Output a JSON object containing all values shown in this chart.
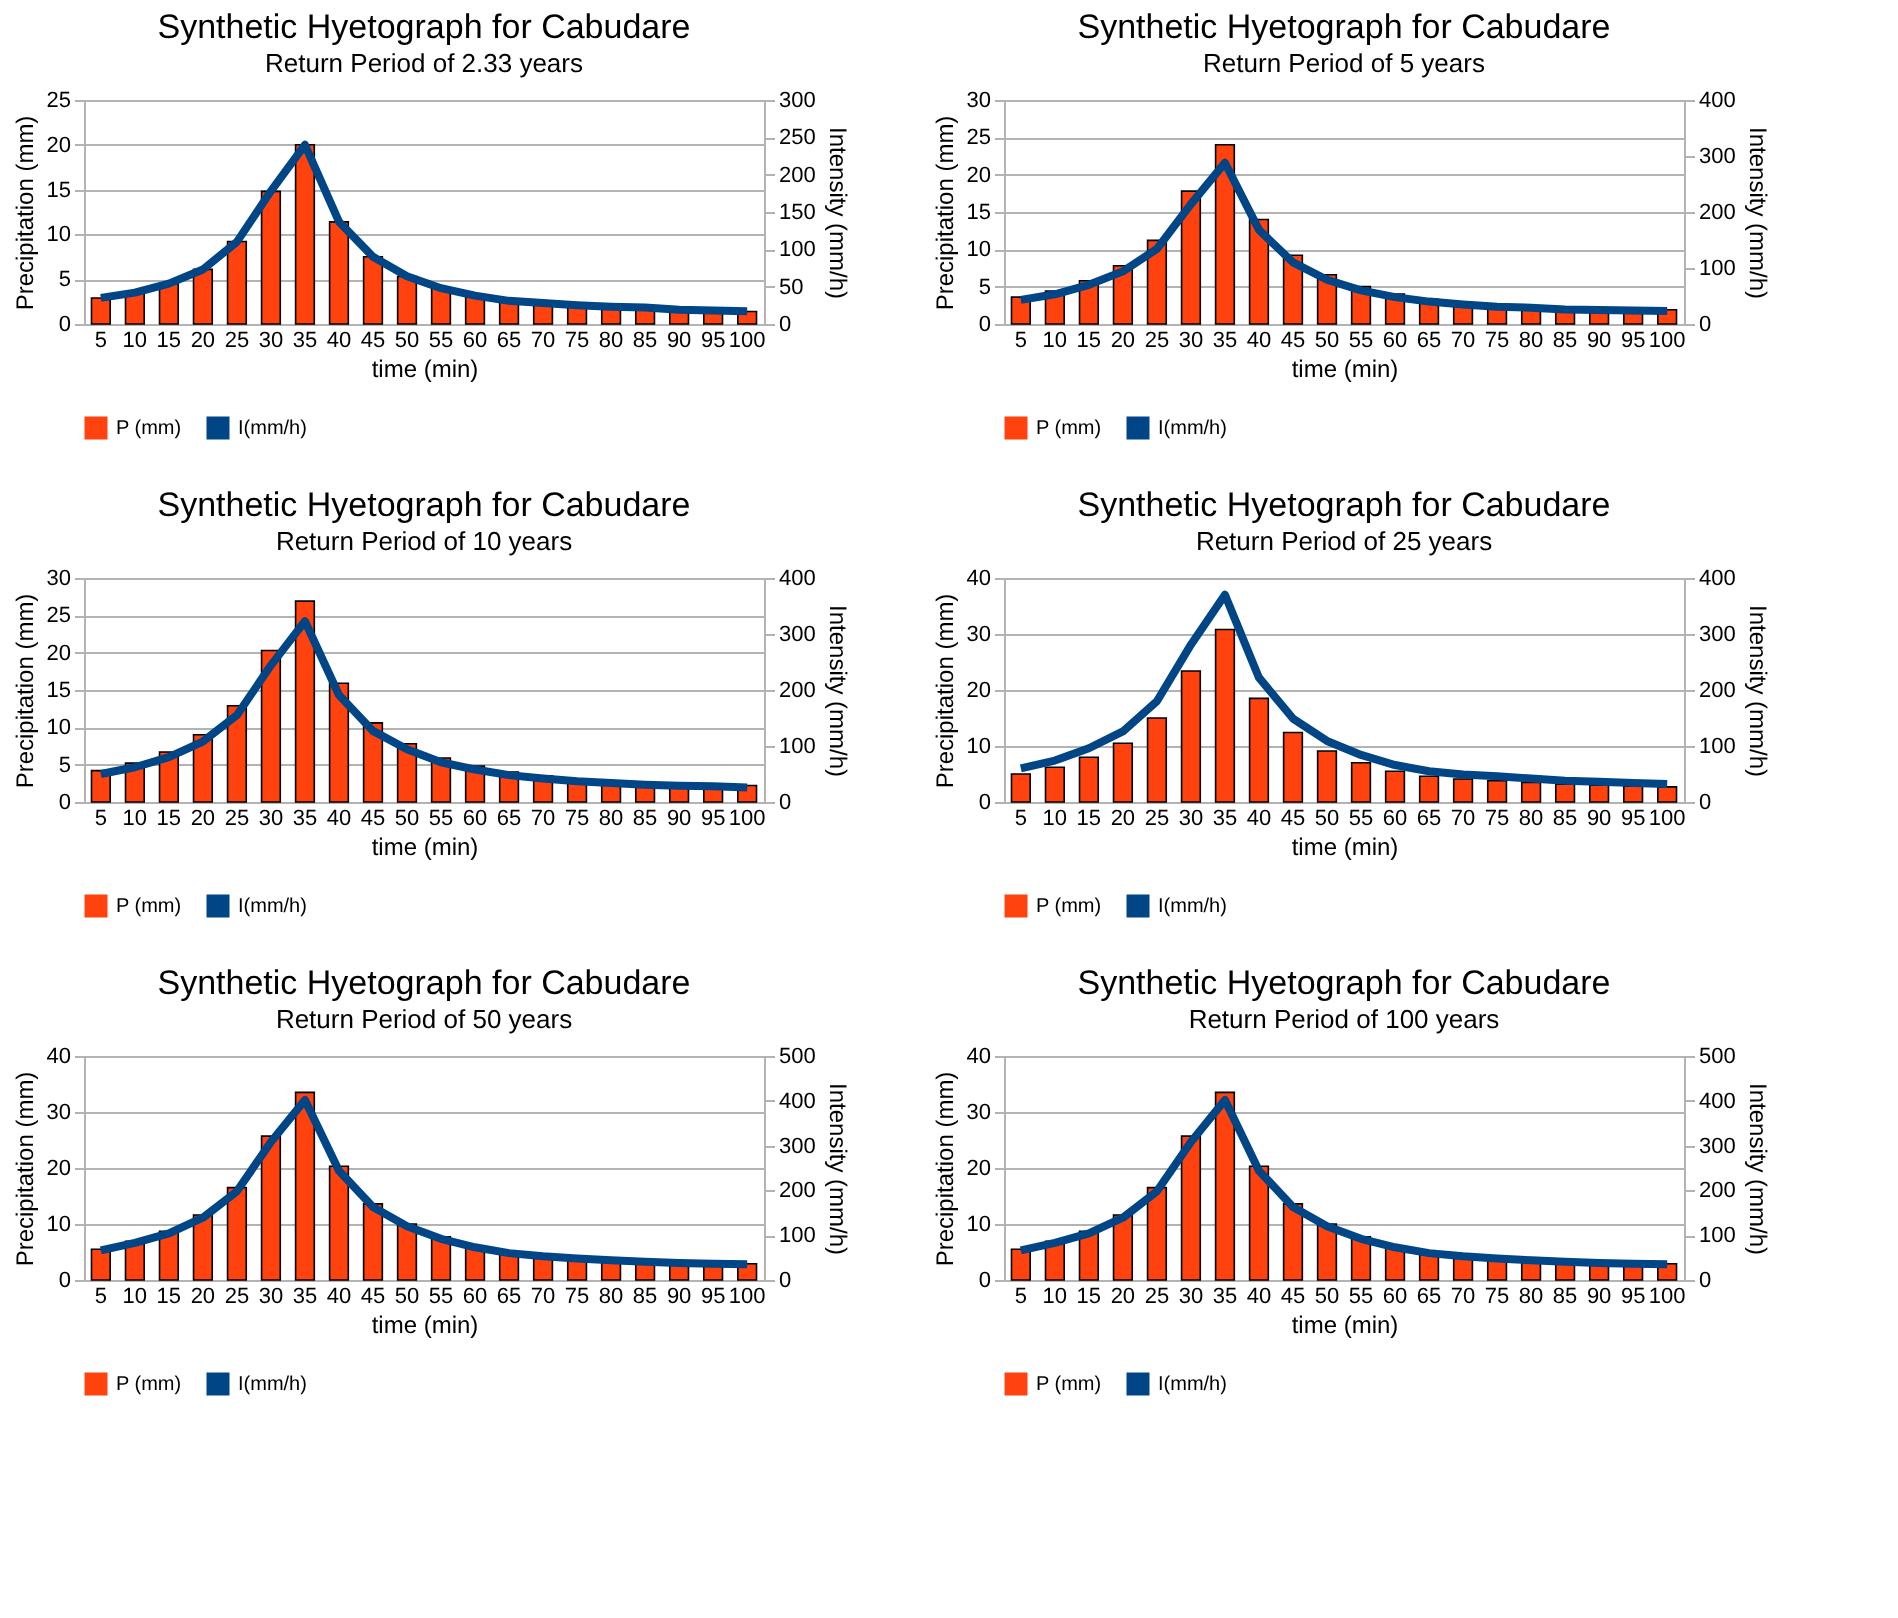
{
  "chart_data": [
    {
      "type": "bar",
      "title": "Synthetic Hyetograph for Cabudare",
      "subtitle": "Return Period of 2.33 years",
      "xlabel": "time (min)",
      "ylabel": "Precipitation (mm)",
      "y2label": "Intensity (mm/h)",
      "categories": [
        "5",
        "10",
        "15",
        "20",
        "25",
        "30",
        "35",
        "40",
        "45",
        "50",
        "55",
        "60",
        "65",
        "70",
        "75",
        "80",
        "85",
        "90",
        "95",
        "100"
      ],
      "series": [
        {
          "name": "P (mm)",
          "color": "#ff420e",
          "values": [
            2.9,
            3.5,
            4.5,
            6.1,
            9.2,
            14.8,
            20,
            11.4,
            7.5,
            5.3,
            4.0,
            3.2,
            2.6,
            2.3,
            2.1,
            1.9,
            1.8,
            1.6,
            1.5,
            1.4
          ]
        },
        {
          "name": "I(mm/h)",
          "type": "line",
          "axis": "y2",
          "color": "#004586",
          "values": [
            35,
            42,
            54,
            73,
            110,
            178,
            240,
            137,
            90,
            64,
            48,
            38,
            31,
            28,
            25,
            23,
            22,
            19,
            18,
            17
          ]
        }
      ],
      "ylim": [
        0,
        25
      ],
      "yticks": [
        0,
        5,
        10,
        15,
        20,
        25
      ],
      "y2lim": [
        0,
        300
      ],
      "y2ticks": [
        0,
        50,
        100,
        150,
        200,
        250,
        300
      ],
      "grid": "y",
      "legend": "bottom"
    },
    {
      "type": "bar",
      "title": "Synthetic Hyetograph for Cabudare",
      "subtitle": "Return Period of 5 years",
      "xlabel": "time (min)",
      "ylabel": "Precipitation (mm)",
      "y2label": "Intensity (mm/h)",
      "categories": [
        "5",
        "10",
        "15",
        "20",
        "25",
        "30",
        "35",
        "40",
        "45",
        "50",
        "55",
        "60",
        "65",
        "70",
        "75",
        "80",
        "85",
        "90",
        "95",
        "100"
      ],
      "series": [
        {
          "name": "P (mm)",
          "color": "#ff420e",
          "values": [
            3.6,
            4.4,
            5.8,
            7.8,
            11.2,
            17.8,
            24,
            14,
            9.2,
            6.6,
            5.0,
            4.0,
            3.3,
            2.9,
            2.6,
            2.4,
            2.2,
            2.1,
            2.0,
            1.9
          ]
        },
        {
          "name": "I(mm/h)",
          "type": "line",
          "axis": "y2",
          "color": "#004586",
          "values": [
            43,
            53,
            70,
            94,
            134,
            214,
            288,
            168,
            110,
            79,
            60,
            48,
            40,
            35,
            31,
            29,
            26,
            25,
            24,
            23
          ]
        }
      ],
      "ylim": [
        0,
        30
      ],
      "yticks": [
        0,
        5,
        10,
        15,
        20,
        25,
        30
      ],
      "y2lim": [
        0,
        400
      ],
      "y2ticks": [
        0,
        100,
        200,
        300,
        400
      ],
      "grid": "y",
      "legend": "bottom"
    },
    {
      "type": "bar",
      "title": "Synthetic Hyetograph for Cabudare",
      "subtitle": "Return Period of 10 years",
      "xlabel": "time (min)",
      "ylabel": "Precipitation (mm)",
      "y2label": "Intensity (mm/h)",
      "categories": [
        "5",
        "10",
        "15",
        "20",
        "25",
        "30",
        "35",
        "40",
        "45",
        "50",
        "55",
        "60",
        "65",
        "70",
        "75",
        "80",
        "85",
        "90",
        "95",
        "100"
      ],
      "series": [
        {
          "name": "P (mm)",
          "color": "#ff420e",
          "values": [
            4.2,
            5.2,
            6.7,
            9.0,
            12.9,
            20.3,
            26.9,
            15.9,
            10.6,
            7.8,
            5.9,
            4.8,
            4.0,
            3.5,
            3.1,
            2.8,
            2.6,
            2.4,
            2.3,
            2.2
          ]
        },
        {
          "name": "I(mm/h)",
          "type": "line",
          "axis": "y2",
          "color": "#004586",
          "values": [
            50,
            62,
            80,
            108,
            155,
            244,
            323,
            191,
            127,
            94,
            71,
            58,
            48,
            42,
            37,
            34,
            31,
            29,
            28,
            26
          ]
        }
      ],
      "ylim": [
        0,
        30
      ],
      "yticks": [
        0,
        5,
        10,
        15,
        20,
        25,
        30
      ],
      "y2lim": [
        0,
        400
      ],
      "y2ticks": [
        0,
        100,
        200,
        300,
        400
      ],
      "grid": "y",
      "legend": "bottom"
    },
    {
      "type": "bar",
      "title": "Synthetic Hyetograph for Cabudare",
      "subtitle": "Return Period of 25 years",
      "xlabel": "time (min)",
      "ylabel": "Precipitation (mm)",
      "y2label": "Intensity (mm/h)",
      "categories": [
        "5",
        "10",
        "15",
        "20",
        "25",
        "30",
        "35",
        "40",
        "45",
        "50",
        "55",
        "60",
        "65",
        "70",
        "75",
        "80",
        "85",
        "90",
        "95",
        "100"
      ],
      "series": [
        {
          "name": "P (mm)",
          "color": "#ff420e",
          "values": [
            5.0,
            6.2,
            8.0,
            10.5,
            15.0,
            23.4,
            30.8,
            18.5,
            12.4,
            9.1,
            7.0,
            5.5,
            4.6,
            4.1,
            3.8,
            3.5,
            3.2,
            3.0,
            2.8,
            2.7
          ]
        },
        {
          "name": "I(mm/h)",
          "type": "line",
          "axis": "y2",
          "color": "#004586",
          "values": [
            60,
            74,
            96,
            126,
            180,
            281,
            370,
            222,
            149,
            109,
            84,
            66,
            55,
            49,
            46,
            42,
            38,
            36,
            34,
            32
          ]
        }
      ],
      "ylim": [
        0,
        40
      ],
      "yticks": [
        0,
        10,
        20,
        30,
        40
      ],
      "y2lim": [
        0,
        400
      ],
      "y2ticks": [
        0,
        100,
        200,
        300,
        400
      ],
      "grid": "y",
      "legend": "bottom"
    },
    {
      "type": "bar",
      "title": "Synthetic Hyetograph for Cabudare",
      "subtitle": "Return Period of 50 years",
      "xlabel": "time (min)",
      "ylabel": "Precipitation (mm)",
      "y2label": "Intensity (mm/h)",
      "categories": [
        "5",
        "10",
        "15",
        "20",
        "25",
        "30",
        "35",
        "40",
        "45",
        "50",
        "55",
        "60",
        "65",
        "70",
        "75",
        "80",
        "85",
        "90",
        "95",
        "100"
      ],
      "series": [
        {
          "name": "P (mm)",
          "color": "#ff420e",
          "values": [
            5.5,
            6.9,
            8.7,
            11.6,
            16.5,
            25.7,
            33.5,
            20.3,
            13.6,
            10.0,
            7.7,
            6.1,
            5.0,
            4.4,
            4.0,
            3.7,
            3.4,
            3.2,
            3.0,
            2.9
          ]
        },
        {
          "name": "I(mm/h)",
          "type": "line",
          "axis": "y2",
          "color": "#004586",
          "values": [
            66,
            83,
            104,
            139,
            198,
            308,
            402,
            244,
            163,
            120,
            92,
            73,
            60,
            53,
            48,
            44,
            41,
            38,
            36,
            35
          ]
        }
      ],
      "ylim": [
        0,
        40
      ],
      "yticks": [
        0,
        10,
        20,
        30,
        40
      ],
      "y2lim": [
        0,
        500
      ],
      "y2ticks": [
        0,
        100,
        200,
        300,
        400,
        500
      ],
      "grid": "y",
      "legend": "bottom"
    },
    {
      "type": "bar",
      "title": "Synthetic Hyetograph for Cabudare",
      "subtitle": "Return Period of 100 years",
      "xlabel": "time (min)",
      "ylabel": "Precipitation (mm)",
      "y2label": "Intensity (mm/h)",
      "categories": [
        "5",
        "10",
        "15",
        "20",
        "25",
        "30",
        "35",
        "40",
        "45",
        "50",
        "55",
        "60",
        "65",
        "70",
        "75",
        "80",
        "85",
        "90",
        "95",
        "100"
      ],
      "series": [
        {
          "name": "P (mm)",
          "color": "#ff420e",
          "values": [
            5.5,
            6.9,
            8.7,
            11.6,
            16.5,
            25.7,
            33.5,
            20.3,
            13.6,
            10.0,
            7.7,
            6.1,
            5.0,
            4.4,
            4.0,
            3.7,
            3.4,
            3.2,
            3.0,
            2.9
          ]
        },
        {
          "name": "I(mm/h)",
          "type": "line",
          "axis": "y2",
          "color": "#004586",
          "values": [
            66,
            83,
            104,
            139,
            198,
            308,
            402,
            244,
            163,
            120,
            92,
            73,
            60,
            53,
            48,
            44,
            41,
            38,
            36,
            35
          ]
        }
      ],
      "ylim": [
        0,
        40
      ],
      "yticks": [
        0,
        10,
        20,
        30,
        40
      ],
      "y2lim": [
        0,
        500
      ],
      "y2ticks": [
        0,
        100,
        200,
        300,
        400,
        500
      ],
      "grid": "y",
      "legend": "bottom"
    }
  ]
}
